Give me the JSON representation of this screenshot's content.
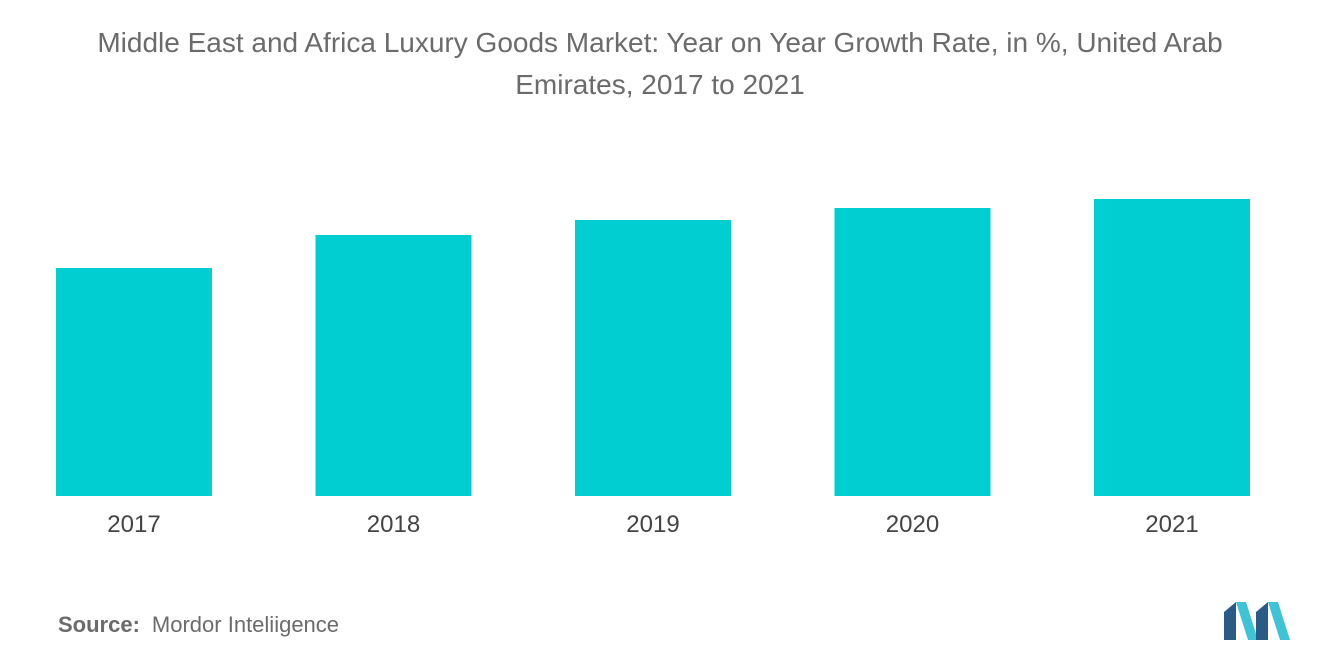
{
  "title_line1": "Middle East and Africa Luxury Goods Market: Year on Year Growth Rate, in %, United Arab",
  "title_line2": "Emirates, 2017 to 2021",
  "source_label": "Source:",
  "source_value": "Mordor Inteliigence",
  "colors": {
    "bar": "#00ced1",
    "text": "#6b6b6b",
    "logo_dark": "#2a5a86",
    "logo_light": "#3fc3d6"
  },
  "logo_icon": "mordor-intelligence-logo-icon",
  "chart_data": {
    "type": "bar",
    "categories": [
      "2017",
      "2018",
      "2019",
      "2020",
      "2021"
    ],
    "values": [
      7.6,
      8.7,
      9.2,
      9.6,
      9.9
    ],
    "ylim": [
      0,
      12
    ],
    "grid": false,
    "legend": "none",
    "xlabel": "",
    "ylabel": ""
  }
}
